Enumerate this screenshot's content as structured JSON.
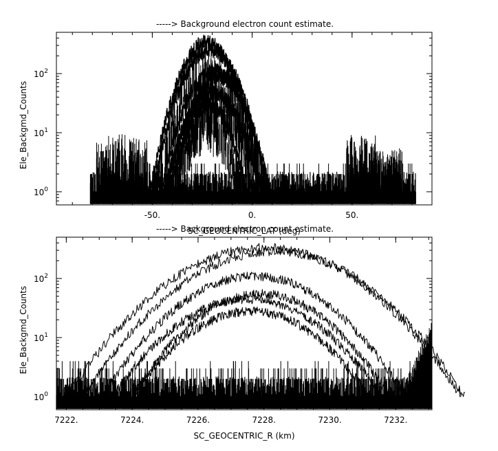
{
  "chart_data": [
    {
      "type": "line",
      "title": "-----> Background electron count estimate.",
      "xlabel": "SC_GEOCENTRIC_LAT (deg)",
      "ylabel": "Ele_Backgmd_Counts",
      "xlim": [
        -98,
        90
      ],
      "ylim": [
        0.6,
        500
      ],
      "yscale": "log",
      "x_ticks": [
        -50,
        0,
        50
      ],
      "x_tick_labels": [
        "-50.",
        "0.",
        "50."
      ],
      "y_ticks": [
        1,
        10,
        100
      ],
      "y_tick_labels": [
        "10^0",
        "10^1",
        "10^2"
      ],
      "grid": false,
      "noise_floor": {
        "x_range": [
          -81,
          82
        ],
        "y_range": [
          1,
          3
        ]
      },
      "noise_patches": [
        {
          "x_range": [
            -78,
            -52
          ],
          "y_peak": 10
        },
        {
          "x_range": [
            47,
            62
          ],
          "y_peak": 10
        },
        {
          "x_range": [
            62,
            75
          ],
          "y_peak": 6
        }
      ],
      "series": [
        {
          "center": -23,
          "half_width": 28,
          "peak": 330
        },
        {
          "center": -21,
          "half_width": 29,
          "peak": 260
        },
        {
          "center": -19,
          "half_width": 27,
          "peak": 110
        },
        {
          "center": -17,
          "half_width": 26,
          "peak": 90
        },
        {
          "center": -20,
          "half_width": 24,
          "peak": 50
        },
        {
          "center": -22,
          "half_width": 19,
          "peak": 30
        }
      ]
    },
    {
      "type": "line",
      "title": "-----> Background electron count estimate.",
      "xlabel": "SC_GEOCENTRIC_R (km)",
      "ylabel": "Ele_Backgmd_Counts",
      "xlim": [
        7221.7,
        7233.1
      ],
      "ylim": [
        0.6,
        500
      ],
      "yscale": "log",
      "x_ticks": [
        7222,
        7224,
        7226,
        7228,
        7230,
        7232
      ],
      "x_tick_labels": [
        "7222.",
        "7224.",
        "7226.",
        "7228.",
        "7230.",
        "7232."
      ],
      "y_ticks": [
        1,
        10,
        100
      ],
      "y_tick_labels": [
        "10^0",
        "10^1",
        "10^2"
      ],
      "grid": false,
      "noise_floor": {
        "x_range": [
          7221.7,
          7233.1
        ],
        "y_range": [
          1,
          4
        ]
      },
      "edge_rise": {
        "x_range": [
          7232.2,
          7233.1
        ],
        "y_end": 14
      },
      "series": [
        {
          "center": 7228.0,
          "half_width": 6.0,
          "peak": 330
        },
        {
          "center": 7228.3,
          "half_width": 5.8,
          "peak": 290
        },
        {
          "center": 7227.7,
          "half_width": 4.6,
          "peak": 110
        },
        {
          "center": 7227.9,
          "half_width": 3.9,
          "peak": 55
        },
        {
          "center": 7227.5,
          "half_width": 4.1,
          "peak": 45
        },
        {
          "center": 7227.6,
          "half_width": 3.6,
          "peak": 28
        }
      ]
    }
  ]
}
